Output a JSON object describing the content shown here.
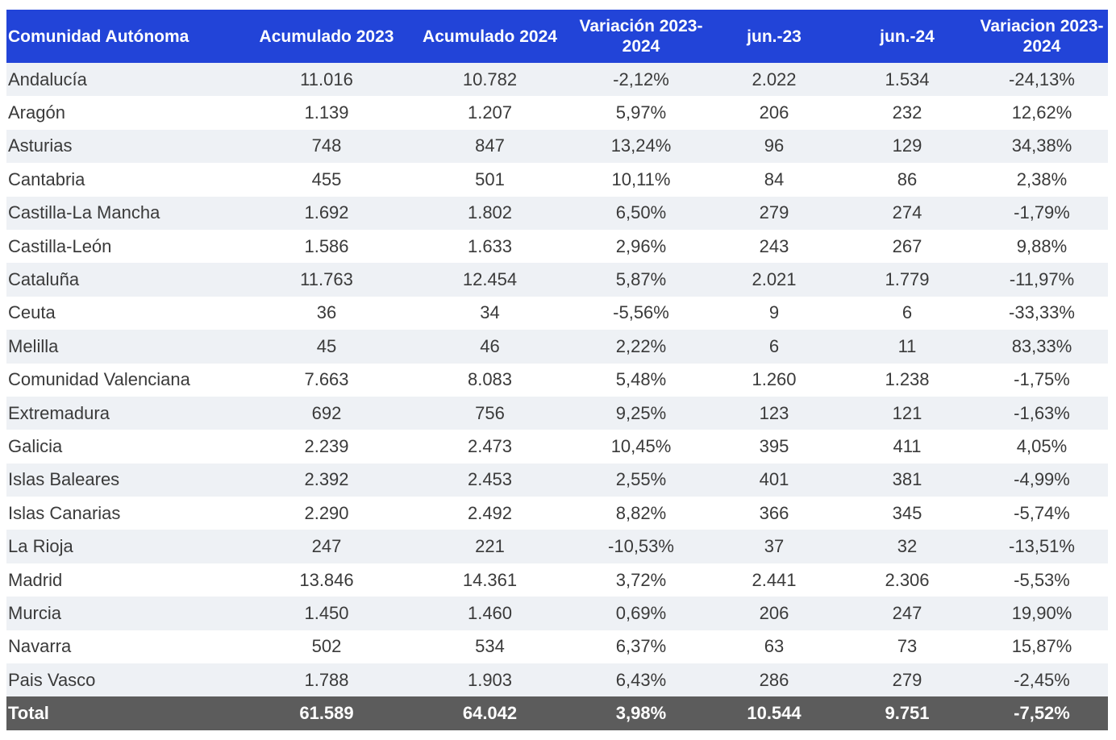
{
  "table": {
    "headers": [
      "Comunidad Autónoma",
      "Acumulado 2023",
      "Acumulado 2024",
      "Variación 2023-2024",
      "jun.-23",
      "jun.-24",
      "Variacion 2023-2024"
    ],
    "rows": [
      [
        "Andalucía",
        "11.016",
        "10.782",
        "-2,12%",
        "2.022",
        "1.534",
        "-24,13%"
      ],
      [
        "Aragón",
        "1.139",
        "1.207",
        "5,97%",
        "206",
        "232",
        "12,62%"
      ],
      [
        "Asturias",
        "748",
        "847",
        "13,24%",
        "96",
        "129",
        "34,38%"
      ],
      [
        "Cantabria",
        "455",
        "501",
        "10,11%",
        "84",
        "86",
        "2,38%"
      ],
      [
        "Castilla-La Mancha",
        "1.692",
        "1.802",
        "6,50%",
        "279",
        "274",
        "-1,79%"
      ],
      [
        "Castilla-León",
        "1.586",
        "1.633",
        "2,96%",
        "243",
        "267",
        "9,88%"
      ],
      [
        "Cataluña",
        "11.763",
        "12.454",
        "5,87%",
        "2.021",
        "1.779",
        "-11,97%"
      ],
      [
        "Ceuta",
        "36",
        "34",
        "-5,56%",
        "9",
        "6",
        "-33,33%"
      ],
      [
        "Melilla",
        "45",
        "46",
        "2,22%",
        "6",
        "11",
        "83,33%"
      ],
      [
        "Comunidad Valenciana",
        "7.663",
        "8.083",
        "5,48%",
        "1.260",
        "1.238",
        "-1,75%"
      ],
      [
        "Extremadura",
        "692",
        "756",
        "9,25%",
        "123",
        "121",
        "-1,63%"
      ],
      [
        "Galicia",
        "2.239",
        "2.473",
        "10,45%",
        "395",
        "411",
        "4,05%"
      ],
      [
        "Islas Baleares",
        "2.392",
        "2.453",
        "2,55%",
        "401",
        "381",
        "-4,99%"
      ],
      [
        "Islas Canarias",
        "2.290",
        "2.492",
        "8,82%",
        "366",
        "345",
        "-5,74%"
      ],
      [
        "La Rioja",
        "247",
        "221",
        "-10,53%",
        "37",
        "32",
        "-13,51%"
      ],
      [
        "Madrid",
        "13.846",
        "14.361",
        "3,72%",
        "2.441",
        "2.306",
        "-5,53%"
      ],
      [
        "Murcia",
        "1.450",
        "1.460",
        "0,69%",
        "206",
        "247",
        "19,90%"
      ],
      [
        "Navarra",
        "502",
        "534",
        "6,37%",
        "63",
        "73",
        "15,87%"
      ],
      [
        "Pais Vasco",
        "1.788",
        "1.903",
        "6,43%",
        "286",
        "279",
        "-2,45%"
      ]
    ],
    "total": [
      "Total",
      "61.589",
      "64.042",
      "3,98%",
      "10.544",
      "9.751",
      "-7,52%"
    ]
  }
}
